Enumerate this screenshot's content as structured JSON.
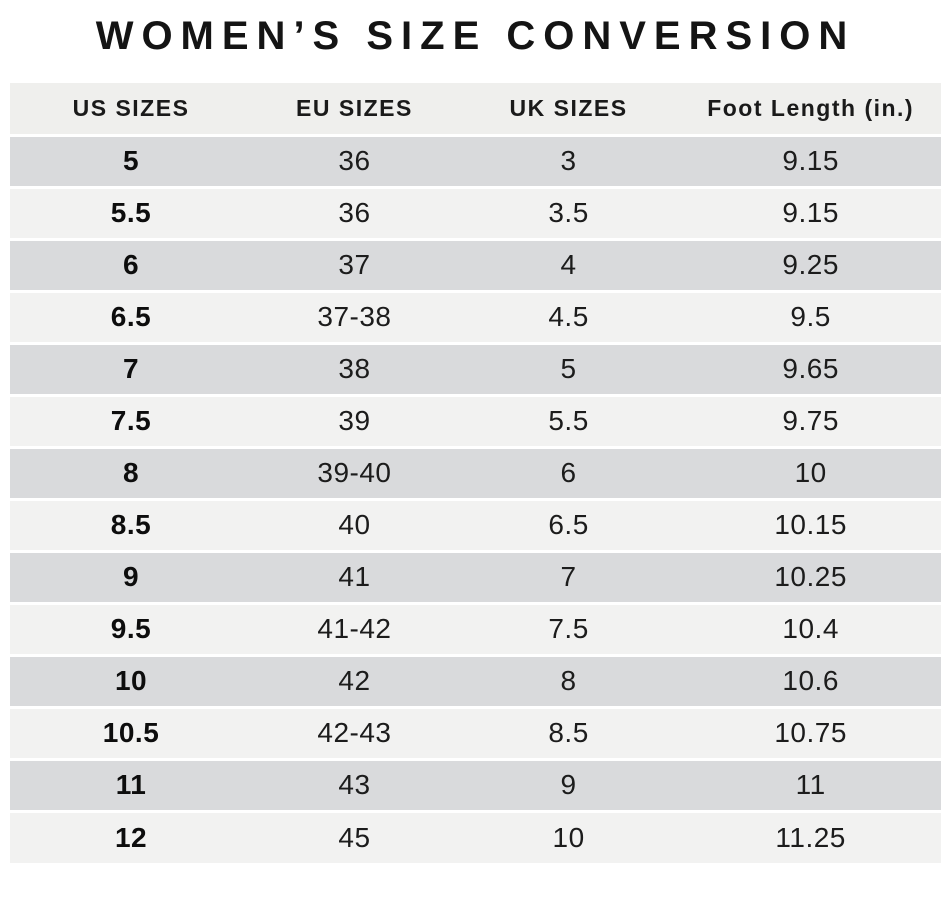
{
  "title": "WOMEN’S SIZE CONVERSION",
  "chart_data": {
    "type": "table",
    "title": "WOMEN’S SIZE CONVERSION",
    "columns": [
      "US SIZES",
      "EU SIZES",
      "UK SIZES",
      "Foot Length (in.)"
    ],
    "rows": [
      [
        "5",
        "36",
        "3",
        "9.15"
      ],
      [
        "5.5",
        "36",
        "3.5",
        "9.15"
      ],
      [
        "6",
        "37",
        "4",
        "9.25"
      ],
      [
        "6.5",
        "37-38",
        "4.5",
        "9.5"
      ],
      [
        "7",
        "38",
        "5",
        "9.65"
      ],
      [
        "7.5",
        "39",
        "5.5",
        "9.75"
      ],
      [
        "8",
        "39-40",
        "6",
        "10"
      ],
      [
        "8.5",
        "40",
        "6.5",
        "10.15"
      ],
      [
        "9",
        "41",
        "7",
        "10.25"
      ],
      [
        "9.5",
        "41-42",
        "7.5",
        "10.4"
      ],
      [
        "10",
        "42",
        "8",
        "10.6"
      ],
      [
        "10.5",
        "42-43",
        "8.5",
        "10.75"
      ],
      [
        "11",
        "43",
        "9",
        "11"
      ],
      [
        "12",
        "45",
        "10",
        "11.25"
      ]
    ],
    "layout": {
      "row_striping": "alternating",
      "first_data_row_shade": "dark",
      "bold_column": "US SIZES"
    }
  },
  "colors": {
    "background": "#ffffff",
    "header_bg": "#efefed",
    "row_dark": "#d9dadc",
    "row_light": "#f2f2f1",
    "text": "#121212"
  }
}
